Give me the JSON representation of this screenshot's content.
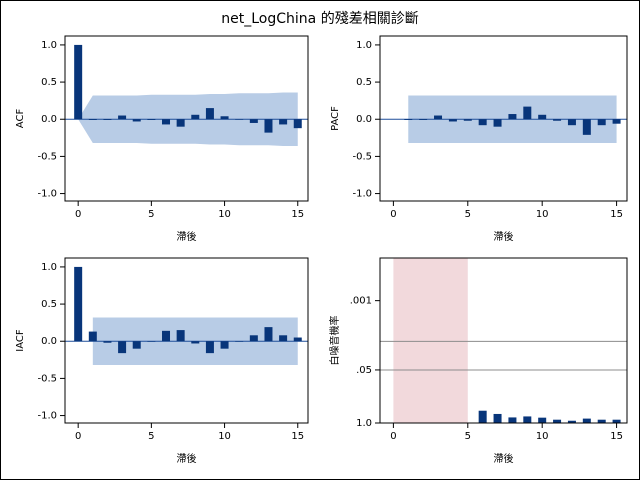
{
  "title": "net_LogChina 的殘差相關診斷",
  "chart_data": [
    {
      "type": "bar",
      "x_label": "滯後",
      "y_label": "ACF",
      "color": "#08357a",
      "band_color": "#b8cce6",
      "x": [
        0,
        1,
        2,
        3,
        4,
        5,
        6,
        7,
        8,
        9,
        10,
        11,
        12,
        13,
        14,
        15
      ],
      "values": [
        1.0,
        -0.01,
        -0.01,
        0.05,
        -0.03,
        -0.01,
        -0.07,
        -0.1,
        0.06,
        0.15,
        0.04,
        0.0,
        -0.05,
        -0.18,
        -0.07,
        -0.12
      ],
      "band_x": [
        0,
        1,
        2,
        3,
        4,
        5,
        6,
        7,
        8,
        9,
        10,
        11,
        12,
        13,
        14,
        15
      ],
      "band_upper": [
        0,
        0.32,
        0.32,
        0.32,
        0.32,
        0.33,
        0.33,
        0.33,
        0.33,
        0.34,
        0.34,
        0.35,
        0.35,
        0.35,
        0.36,
        0.36
      ],
      "band_lower": [
        0,
        -0.32,
        -0.32,
        -0.32,
        -0.32,
        -0.33,
        -0.33,
        -0.33,
        -0.33,
        -0.34,
        -0.34,
        -0.35,
        -0.35,
        -0.35,
        -0.36,
        -0.36
      ],
      "xlim": [
        -0.9,
        15.7
      ],
      "xticks": [
        0,
        5,
        10,
        15
      ],
      "ylim": [
        -1.1,
        1.12
      ],
      "yticks": [
        {
          "value": -1,
          "label": "-1.0"
        },
        {
          "value": -0.5,
          "label": "-0.5"
        },
        {
          "value": 0,
          "label": "0.0"
        },
        {
          "value": 0.5,
          "label": "0.5"
        },
        {
          "value": 1,
          "label": "1.0"
        }
      ]
    },
    {
      "type": "bar",
      "x_label": "滯後",
      "y_label": "PACF",
      "color": "#08357a",
      "band_color": "#b8cce6",
      "x": [
        1,
        2,
        3,
        4,
        5,
        6,
        7,
        8,
        9,
        10,
        11,
        12,
        13,
        14,
        15
      ],
      "values": [
        -0.01,
        -0.01,
        0.05,
        -0.03,
        -0.02,
        -0.08,
        -0.1,
        0.07,
        0.17,
        0.06,
        -0.02,
        -0.08,
        -0.21,
        -0.08,
        -0.06
      ],
      "band_x": [
        1,
        15
      ],
      "band_upper": [
        0.32,
        0.32
      ],
      "band_lower": [
        -0.32,
        -0.32
      ],
      "xlim": [
        -0.9,
        15.7
      ],
      "xticks": [
        0,
        5,
        10,
        15
      ],
      "ylim": [
        -1.1,
        1.12
      ],
      "yticks": [
        {
          "value": -1,
          "label": "-1.0"
        },
        {
          "value": -0.5,
          "label": "-0.5"
        },
        {
          "value": 0,
          "label": "0.0"
        },
        {
          "value": 0.5,
          "label": "0.5"
        },
        {
          "value": 1,
          "label": "1.0"
        }
      ]
    },
    {
      "type": "bar",
      "x_label": "滯後",
      "y_label": "IACF",
      "color": "#08357a",
      "band_color": "#b8cce6",
      "x": [
        0,
        1,
        2,
        3,
        4,
        5,
        6,
        7,
        8,
        9,
        10,
        11,
        12,
        13,
        14,
        15
      ],
      "values": [
        1.0,
        0.13,
        -0.02,
        -0.16,
        -0.1,
        0.0,
        0.14,
        0.15,
        -0.03,
        -0.16,
        -0.1,
        0.0,
        0.08,
        0.19,
        0.08,
        0.05
      ],
      "band_x": [
        1,
        15
      ],
      "band_upper": [
        0.32,
        0.32
      ],
      "band_lower": [
        -0.32,
        -0.32
      ],
      "xlim": [
        -0.9,
        15.7
      ],
      "xticks": [
        0,
        5,
        10,
        15
      ],
      "ylim": [
        -1.1,
        1.12
      ],
      "yticks": [
        {
          "value": -1,
          "label": "-1.0"
        },
        {
          "value": -0.5,
          "label": "-0.5"
        },
        {
          "value": 0,
          "label": "0.0"
        },
        {
          "value": 0.5,
          "label": "0.5"
        },
        {
          "value": 1,
          "label": "1.0"
        }
      ]
    },
    {
      "type": "bar",
      "x_label": "滯後",
      "y_label": "白噪音機率",
      "color": "#08357a",
      "log_scale": true,
      "x": [
        0,
        1,
        2,
        3,
        4,
        5,
        6,
        7,
        8,
        9,
        10,
        11,
        12,
        13,
        14,
        15
      ],
      "values": [
        null,
        null,
        null,
        null,
        null,
        null,
        0.5,
        0.6,
        0.73,
        0.69,
        0.74,
        0.83,
        0.88,
        0.78,
        0.83,
        0.83
      ],
      "shaded_range": [
        0,
        5
      ],
      "shade_color": "#f2d9dc",
      "reference_lines": [
        0.05,
        0.01
      ],
      "reference_color": "#8c8c8c",
      "xlim": [
        -0.9,
        15.7
      ],
      "xticks": [
        0,
        5,
        10,
        15
      ],
      "ylim": [
        1,
        9e-05
      ],
      "yticks": [
        {
          "value": 1,
          "label": "1.0"
        },
        {
          "value": 0.05,
          "label": ".05"
        },
        {
          "value": 0.001,
          "label": ".001"
        }
      ]
    }
  ]
}
